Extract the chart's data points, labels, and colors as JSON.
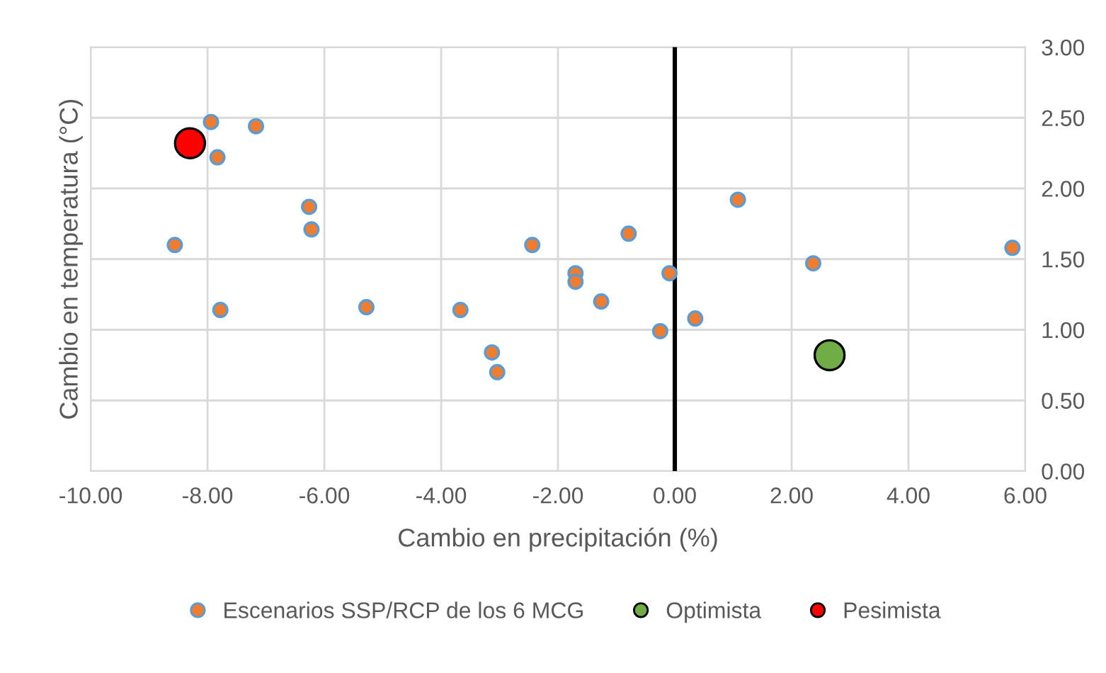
{
  "chart_data": {
    "type": "scatter",
    "xlabel": "Cambio en precipitación (%)",
    "ylabel": "Cambio en temperatura (°C)",
    "series": [
      {
        "name": "Escenarios SSP/RCP de los 6 MCG",
        "color": "#ed7d31",
        "x": [
          -7.94,
          -7.17,
          -7.83,
          -6.26,
          -6.22,
          -8.56,
          -2.44,
          -0.79,
          -1.7,
          -1.7,
          -0.09,
          -1.26,
          -7.78,
          -5.28,
          -3.67,
          -3.13,
          -3.04,
          -0.25,
          0.35,
          1.08,
          2.37,
          5.78
        ],
        "values": [
          2.47,
          2.44,
          2.22,
          1.87,
          1.71,
          1.6,
          1.6,
          1.68,
          1.4,
          1.34,
          1.4,
          1.2,
          1.14,
          1.16,
          1.14,
          0.84,
          0.7,
          0.99,
          1.08,
          1.92,
          1.47,
          1.58
        ]
      },
      {
        "name": "Optimista",
        "color": "#70ad47",
        "x": [
          2.65
        ],
        "values": [
          0.82
        ]
      },
      {
        "name": "Pesimista",
        "color": "#ff0000",
        "x": [
          -8.3
        ],
        "values": [
          2.32
        ]
      }
    ],
    "xlim": [
      -10,
      6
    ],
    "xticks": [
      {
        "value": -10,
        "label": "-10.00"
      },
      {
        "value": -8,
        "label": "-8.00"
      },
      {
        "value": -6,
        "label": "-6.00"
      },
      {
        "value": -4,
        "label": "-4.00"
      },
      {
        "value": -2,
        "label": "-2.00"
      },
      {
        "value": 0,
        "label": "0.00"
      },
      {
        "value": 2,
        "label": "2.00"
      },
      {
        "value": 4,
        "label": "4.00"
      },
      {
        "value": 6,
        "label": "6.00"
      }
    ],
    "ylim": [
      0,
      3
    ],
    "yticks": [
      {
        "value": 0,
        "label": "0.00"
      },
      {
        "value": 0.5,
        "label": "0.50"
      },
      {
        "value": 1,
        "label": "1.00"
      },
      {
        "value": 1.5,
        "label": "1.50"
      },
      {
        "value": 2,
        "label": "2.00"
      },
      {
        "value": 2.5,
        "label": "2.50"
      },
      {
        "value": 3,
        "label": "3.00"
      }
    ],
    "ref_lines": [
      {
        "axis": "x",
        "value": 0,
        "label": null,
        "color": "#000000"
      }
    ],
    "grid": true,
    "legend": "bottom",
    "marker": "circle"
  }
}
